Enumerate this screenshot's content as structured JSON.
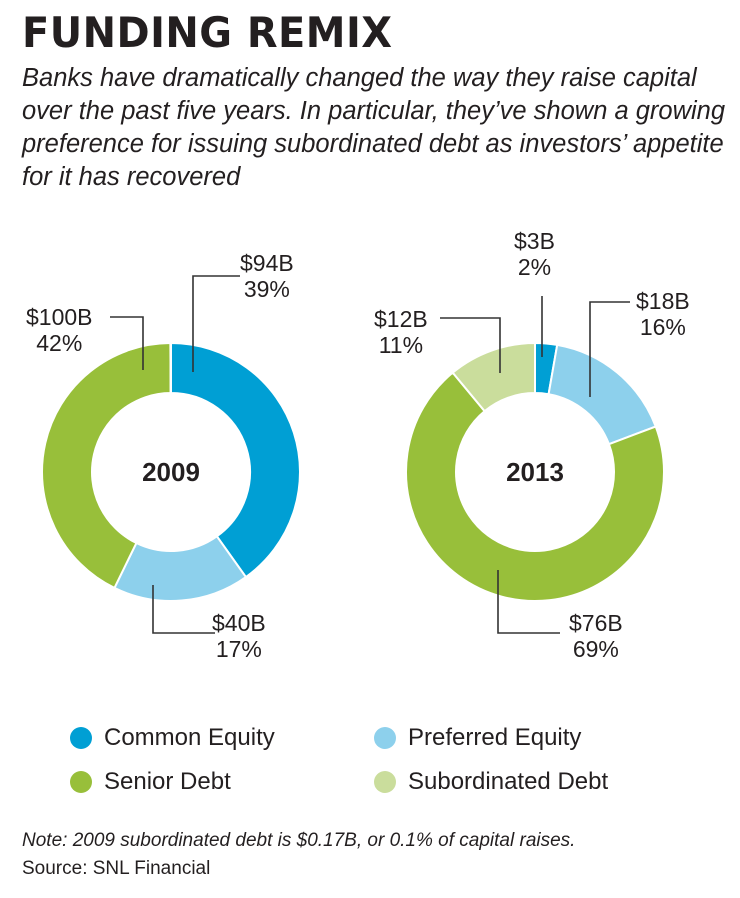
{
  "title": "FUNDING REMIX",
  "subtitle": "Banks have dramatically changed the way they raise capital over the past five years. In particular, they’ve shown a growing preference for issuing subordinated debt as investors’ appetite for it has recovered",
  "note": "Note: 2009 subordinated debt is $0.17B, or 0.1% of capital raises.",
  "source": "Source: SNL Financial",
  "colors": {
    "Common Equity": "#009fd4",
    "Preferred Equity": "#8dd0ec",
    "Senior Debt": "#98bf3a",
    "Subordinated Debt": "#cadd9c"
  },
  "chart_data": [
    {
      "type": "pie",
      "center_label": "2009",
      "categories": [
        "Common Equity",
        "Preferred Equity",
        "Senior Debt",
        "Subordinated Debt"
      ],
      "values": [
        94,
        40,
        100,
        0.17
      ],
      "unit": "$B",
      "labels": [
        {
          "amount": "$94B",
          "pct": "39%"
        },
        {
          "amount": "$40B",
          "pct": "17%"
        },
        {
          "amount": "$100B",
          "pct": "42%"
        },
        null
      ]
    },
    {
      "type": "pie",
      "center_label": "2013",
      "categories": [
        "Common Equity",
        "Preferred Equity",
        "Senior Debt",
        "Subordinated Debt"
      ],
      "values": [
        3,
        18,
        76,
        12
      ],
      "unit": "$B",
      "labels": [
        {
          "amount": "$3B",
          "pct": "2%"
        },
        {
          "amount": "$18B",
          "pct": "16%"
        },
        {
          "amount": "$76B",
          "pct": "69%"
        },
        {
          "amount": "$12B",
          "pct": "11%"
        }
      ]
    }
  ],
  "legend": [
    "Common Equity",
    "Preferred Equity",
    "Senior Debt",
    "Subordinated Debt"
  ]
}
